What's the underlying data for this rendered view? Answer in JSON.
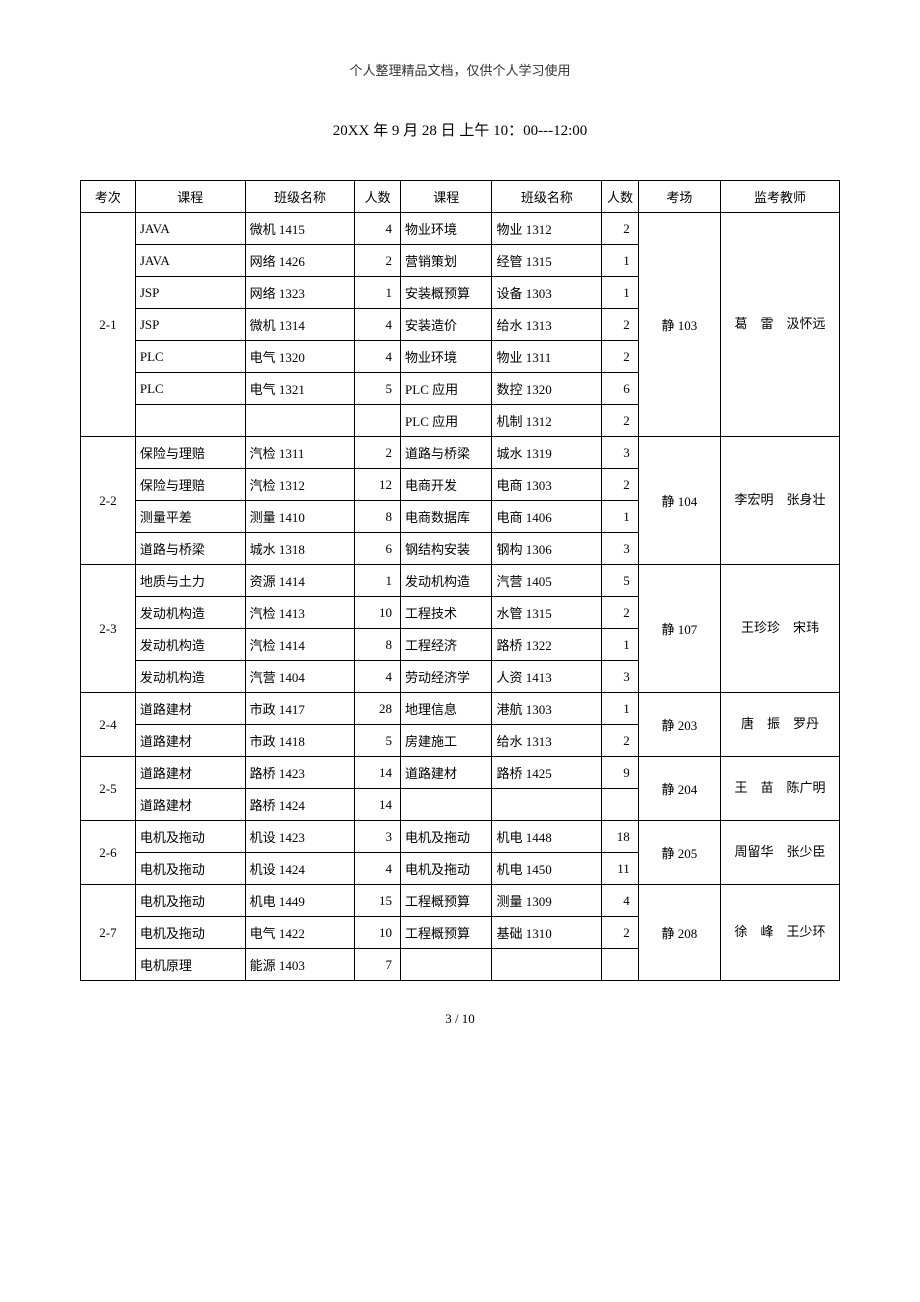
{
  "header_note": "个人整理精品文档，仅供个人学习使用",
  "title": "20XX 年 9 月 28 日 上午 10：00---12:00",
  "headers": [
    "考次",
    "课程",
    "班级名称",
    "人数",
    "课程",
    "班级名称",
    "人数",
    "考场",
    "监考教师"
  ],
  "footer": "3 / 10",
  "rows": [
    {
      "exam": "2-1",
      "exam_span": 7,
      "c1": "JAVA",
      "b1": "微机 1415",
      "n1": "4",
      "c2": "物业环境",
      "b2": "物业 1312",
      "n2": "2",
      "room": "静 103",
      "room_span": 7,
      "teacher": "葛　雷　汲怀远",
      "teacher_span": 7
    },
    {
      "c1": "JAVA",
      "b1": "网络 1426",
      "n1": "2",
      "c2": "营销策划",
      "b2": "经管 1315",
      "n2": "1"
    },
    {
      "c1": "JSP",
      "b1": "网络 1323",
      "n1": "1",
      "c2": "安装概预算",
      "b2": "设备 1303",
      "n2": "1"
    },
    {
      "c1": "JSP",
      "b1": "微机 1314",
      "n1": "4",
      "c2": "安装造价",
      "b2": "给水 1313",
      "n2": "2"
    },
    {
      "c1": "PLC",
      "b1": "电气 1320",
      "n1": "4",
      "c2": "物业环境",
      "b2": "物业 1311",
      "n2": "2"
    },
    {
      "c1": "PLC",
      "b1": "电气 1321",
      "n1": "5",
      "c2": "PLC 应用",
      "b2": "数控 1320",
      "n2": "6"
    },
    {
      "c1": "",
      "b1": "",
      "n1": "",
      "c2": "PLC 应用",
      "b2": "机制 1312",
      "n2": "2"
    },
    {
      "exam": "2-2",
      "exam_span": 4,
      "c1": "保险与理赔",
      "b1": "汽检 1311",
      "n1": "2",
      "c2": "道路与桥梁",
      "b2": "城水 1319",
      "n2": "3",
      "room": "静 104",
      "room_span": 4,
      "teacher": "李宏明　张身壮",
      "teacher_span": 4
    },
    {
      "c1": "保险与理赔",
      "b1": "汽检 1312",
      "n1": "12",
      "c2": "电商开发",
      "b2": "电商 1303",
      "n2": "2"
    },
    {
      "c1": "测量平差",
      "b1": "测量 1410",
      "n1": "8",
      "c2": "电商数据库",
      "b2": "电商 1406",
      "n2": "1"
    },
    {
      "c1": "道路与桥梁",
      "b1": "城水 1318",
      "n1": "6",
      "c2": "钢结构安装",
      "b2": "钢构 1306",
      "n2": "3"
    },
    {
      "exam": "2-3",
      "exam_span": 4,
      "c1": "地质与土力",
      "b1": "资源 1414",
      "n1": "1",
      "c2": "发动机构造",
      "b2": "汽营 1405",
      "n2": "5",
      "room": "静 107",
      "room_span": 4,
      "teacher": "王珍珍　宋玮",
      "teacher_span": 4
    },
    {
      "c1": "发动机构造",
      "b1": "汽检 1413",
      "n1": "10",
      "c2": "工程技术",
      "b2": "水管 1315",
      "n2": "2"
    },
    {
      "c1": "发动机构造",
      "b1": "汽检 1414",
      "n1": "8",
      "c2": "工程经济",
      "b2": "路桥 1322",
      "n2": "1"
    },
    {
      "c1": "发动机构造",
      "b1": "汽营 1404",
      "n1": "4",
      "c2": "劳动经济学",
      "b2": "人资 1413",
      "n2": "3"
    },
    {
      "exam": "2-4",
      "exam_span": 2,
      "c1": "道路建材",
      "b1": "市政 1417",
      "n1": "28",
      "c2": "地理信息",
      "b2": "港航 1303",
      "n2": "1",
      "room": "静 203",
      "room_span": 2,
      "teacher": "唐　振　罗丹",
      "teacher_span": 2
    },
    {
      "c1": "道路建材",
      "b1": "市政 1418",
      "n1": "5",
      "c2": "房建施工",
      "b2": "给水 1313",
      "n2": "2"
    },
    {
      "exam": "2-5",
      "exam_span": 2,
      "c1": "道路建材",
      "b1": "路桥 1423",
      "n1": "14",
      "c2": "道路建材",
      "b2": "路桥 1425",
      "n2": "9",
      "room": "静 204",
      "room_span": 2,
      "teacher": "王　苗　陈广明",
      "teacher_span": 2
    },
    {
      "c1": "道路建材",
      "b1": "路桥 1424",
      "n1": "14",
      "c2": "",
      "b2": "",
      "n2": ""
    },
    {
      "exam": "2-6",
      "exam_span": 2,
      "c1": "电机及拖动",
      "b1": "机设 1423",
      "n1": "3",
      "c2": "电机及拖动",
      "b2": "机电 1448",
      "n2": "18",
      "room": "静 205",
      "room_span": 2,
      "teacher": "周留华　张少臣",
      "teacher_span": 2
    },
    {
      "c1": "电机及拖动",
      "b1": "机设 1424",
      "n1": "4",
      "c2": "电机及拖动",
      "b2": "机电 1450",
      "n2": "11"
    },
    {
      "exam": "2-7",
      "exam_span": 3,
      "c1": "电机及拖动",
      "b1": "机电 1449",
      "n1": "15",
      "c2": "工程概预算",
      "b2": "测量 1309",
      "n2": "4",
      "room": "静 208",
      "room_span": 3,
      "teacher": "徐　峰　王少环",
      "teacher_span": 3
    },
    {
      "c1": "电机及拖动",
      "b1": "电气 1422",
      "n1": "10",
      "c2": "工程概预算",
      "b2": "基础 1310",
      "n2": "2"
    },
    {
      "c1": "电机原理",
      "b1": "能源 1403",
      "n1": "7",
      "c2": "",
      "b2": "",
      "n2": ""
    }
  ]
}
